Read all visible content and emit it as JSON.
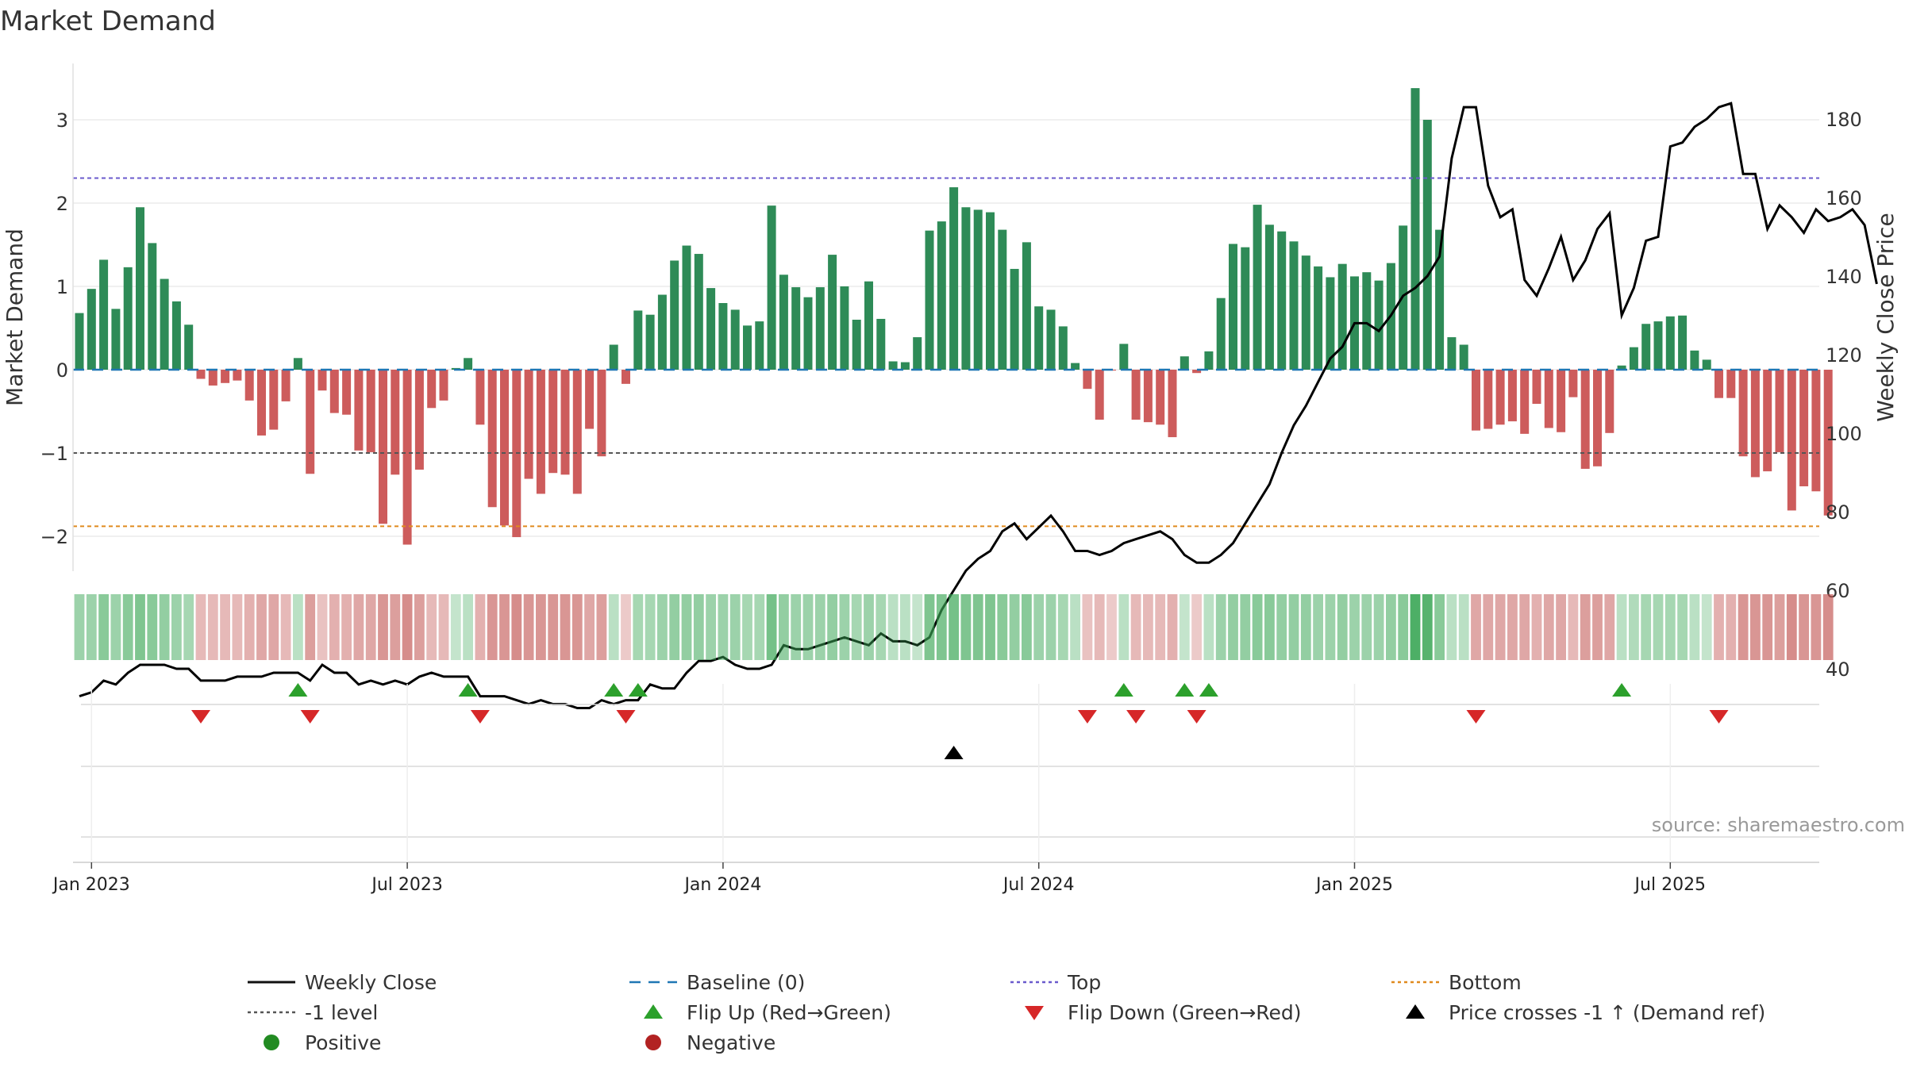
{
  "chart_data": {
    "type": "bar",
    "title": "Market Demand",
    "ylabel_left": "Market Demand",
    "ylabel_right": "Weekly Close Price",
    "source": "source: sharemaestro.com",
    "ylim_left": [
      -2.4,
      3.6
    ],
    "ylim_right": [
      22,
      187
    ],
    "yticks_left": [
      {
        "v": 3,
        "label": "3"
      },
      {
        "v": 2,
        "label": "2"
      },
      {
        "v": 1,
        "label": "1"
      },
      {
        "v": 0,
        "label": "0"
      },
      {
        "v": -1,
        "label": "−1"
      },
      {
        "v": -2,
        "label": "−2"
      }
    ],
    "yticks_right": [
      {
        "v": 180,
        "label": "180"
      },
      {
        "v": 160,
        "label": "160"
      },
      {
        "v": 140,
        "label": "140"
      },
      {
        "v": 120,
        "label": "120"
      },
      {
        "v": 100,
        "label": "100"
      },
      {
        "v": 80,
        "label": "80"
      },
      {
        "v": 60,
        "label": "60"
      },
      {
        "v": 40,
        "label": "40"
      }
    ],
    "xticks": [
      {
        "w": 1,
        "label": "Jan 2023"
      },
      {
        "w": 27,
        "label": "Jul 2023"
      },
      {
        "w": 53,
        "label": "Jan 2024"
      },
      {
        "w": 79,
        "label": "Jul 2024"
      },
      {
        "w": 105,
        "label": "Jan 2025"
      },
      {
        "w": 131,
        "label": "Jul 2025"
      }
    ],
    "first_week": "2022-12-26",
    "levels": {
      "top": 2.3,
      "minus_one": -1.0,
      "bottom": -1.88,
      "baseline": 0
    },
    "demand": [
      0.68,
      0.97,
      1.32,
      0.73,
      1.23,
      1.95,
      1.52,
      1.09,
      0.82,
      0.54,
      -0.11,
      -0.19,
      -0.16,
      -0.13,
      -0.37,
      -0.79,
      -0.72,
      -0.38,
      0.14,
      -1.25,
      -0.25,
      -0.52,
      -0.54,
      -0.97,
      -0.99,
      -1.85,
      -1.26,
      -2.1,
      -1.2,
      -0.46,
      -0.37,
      0.02,
      0.14,
      -0.66,
      -1.65,
      -1.87,
      -2.01,
      -1.31,
      -1.49,
      -1.24,
      -1.26,
      -1.49,
      -0.71,
      -1.04,
      0.3,
      -0.17,
      0.71,
      0.66,
      0.9,
      1.31,
      1.49,
      1.39,
      0.98,
      0.8,
      0.72,
      0.53,
      0.58,
      1.97,
      1.14,
      0.99,
      0.87,
      0.99,
      1.38,
      1.0,
      0.6,
      1.06,
      0.61,
      0.1,
      0.09,
      0.39,
      1.67,
      1.78,
      2.19,
      1.95,
      1.92,
      1.89,
      1.68,
      1.21,
      1.53,
      0.76,
      0.72,
      0.52,
      0.08,
      -0.23,
      -0.6,
      -0.01,
      0.31,
      -0.6,
      -0.63,
      -0.66,
      -0.81,
      0.16,
      -0.04,
      0.22,
      0.86,
      1.51,
      1.47,
      1.98,
      1.74,
      1.66,
      1.54,
      1.37,
      1.24,
      1.11,
      1.27,
      1.12,
      1.17,
      1.07,
      1.28,
      1.73,
      3.38,
      3.0,
      1.68,
      0.39,
      0.3,
      -0.73,
      -0.71,
      -0.66,
      -0.62,
      -0.77,
      -0.41,
      -0.7,
      -0.75,
      -0.33,
      -1.19,
      -1.16,
      -0.76,
      0.05,
      0.27,
      0.55,
      0.58,
      0.64,
      0.65,
      0.23,
      0.12,
      -0.34,
      -0.34,
      -1.04,
      -1.29,
      -1.22,
      -0.99,
      -1.69,
      -1.4,
      -1.46,
      -1.75
    ],
    "price": [
      33,
      34,
      37,
      36,
      39,
      41,
      41,
      41,
      40,
      40,
      37,
      37,
      37,
      38,
      38,
      38,
      39,
      39,
      39,
      37,
      41,
      39,
      39,
      36,
      37,
      36,
      37,
      36,
      38,
      39,
      38,
      38,
      38,
      33,
      33,
      33,
      32,
      31,
      32,
      31,
      31,
      30,
      30,
      32,
      31,
      32,
      32,
      36,
      35,
      35,
      39,
      42,
      42,
      43,
      41,
      40,
      40,
      41,
      46,
      45,
      45,
      46,
      47,
      48,
      47,
      46,
      49,
      47,
      47,
      46,
      48,
      55,
      60,
      65,
      68,
      70,
      75,
      77,
      73,
      76,
      79,
      75,
      70,
      70,
      69,
      70,
      72,
      73,
      74,
      75,
      73,
      69,
      67,
      67,
      69,
      72,
      77,
      82,
      87,
      95,
      102,
      107,
      113,
      119,
      122,
      128,
      128,
      126,
      130,
      135,
      137,
      140,
      145,
      170,
      183,
      183,
      163,
      155,
      157,
      139,
      135,
      142,
      150,
      139,
      144,
      152,
      156,
      130,
      137,
      149,
      150,
      173,
      174,
      178,
      180,
      183,
      184,
      166,
      166,
      152,
      158,
      155,
      151,
      157,
      154,
      155,
      157,
      153,
      138
    ],
    "strip_opacity": [
      0.5,
      0.5,
      0.6,
      0.5,
      0.6,
      0.65,
      0.6,
      0.55,
      0.5,
      0.45,
      0.4,
      0.4,
      0.4,
      0.4,
      0.45,
      0.5,
      0.5,
      0.4,
      0.35,
      0.55,
      0.35,
      0.45,
      0.45,
      0.5,
      0.5,
      0.6,
      0.55,
      0.65,
      0.55,
      0.4,
      0.4,
      0.3,
      0.35,
      0.45,
      0.6,
      0.6,
      0.65,
      0.6,
      0.6,
      0.6,
      0.6,
      0.6,
      0.5,
      0.55,
      0.35,
      0.3,
      0.45,
      0.45,
      0.5,
      0.55,
      0.55,
      0.55,
      0.5,
      0.5,
      0.5,
      0.45,
      0.45,
      0.7,
      0.55,
      0.5,
      0.5,
      0.5,
      0.55,
      0.5,
      0.45,
      0.5,
      0.45,
      0.35,
      0.35,
      0.3,
      0.65,
      0.65,
      0.7,
      0.65,
      0.65,
      0.65,
      0.6,
      0.55,
      0.6,
      0.5,
      0.5,
      0.45,
      0.35,
      0.35,
      0.4,
      0.3,
      0.35,
      0.4,
      0.4,
      0.4,
      0.45,
      0.3,
      0.3,
      0.35,
      0.5,
      0.55,
      0.55,
      0.6,
      0.6,
      0.55,
      0.55,
      0.55,
      0.5,
      0.5,
      0.55,
      0.5,
      0.5,
      0.5,
      0.55,
      0.6,
      0.9,
      0.85,
      0.6,
      0.35,
      0.35,
      0.5,
      0.5,
      0.5,
      0.5,
      0.5,
      0.45,
      0.5,
      0.5,
      0.4,
      0.55,
      0.55,
      0.5,
      0.35,
      0.4,
      0.45,
      0.45,
      0.45,
      0.45,
      0.35,
      0.3,
      0.45,
      0.45,
      0.6,
      0.6,
      0.6,
      0.55,
      0.65,
      0.6,
      0.6,
      0.65
    ],
    "flips_up": [
      18,
      32,
      44,
      46,
      86,
      91,
      93,
      127
    ],
    "flips_down": [
      10,
      19,
      33,
      45,
      83,
      87,
      92,
      115,
      135
    ],
    "price_cross": [
      72
    ],
    "legend": [
      {
        "label": "Weekly Close",
        "kind": "line-solid",
        "color": "#111111"
      },
      {
        "label": "Baseline (0)",
        "kind": "line-dash",
        "color": "#1f77b4"
      },
      {
        "label": "Top",
        "kind": "line-dot",
        "color": "#6a5acd"
      },
      {
        "label": "Bottom",
        "kind": "line-dot",
        "color": "#e08a1e"
      },
      {
        "label": "-1 level",
        "kind": "line-dot",
        "color": "#555555"
      },
      {
        "label": "Flip Up (Red→Green)",
        "kind": "tri-up",
        "color": "#2ca02c"
      },
      {
        "label": "Flip Down (Green→Red)",
        "kind": "tri-down",
        "color": "#d62728"
      },
      {
        "label": "Price crosses -1 ↑ (Demand ref)",
        "kind": "tri-up",
        "color": "#000000"
      },
      {
        "label": "Positive",
        "kind": "dot",
        "color": "#228b22"
      },
      {
        "label": "Negative",
        "kind": "dot",
        "color": "#b22222"
      }
    ],
    "colors": {
      "pos": "#2e8b57",
      "neg": "#cd5c5c",
      "strip_pos": "#3aa655",
      "strip_neg": "#c0504d",
      "price": "#000000",
      "grid": "#e6e6e6"
    }
  }
}
